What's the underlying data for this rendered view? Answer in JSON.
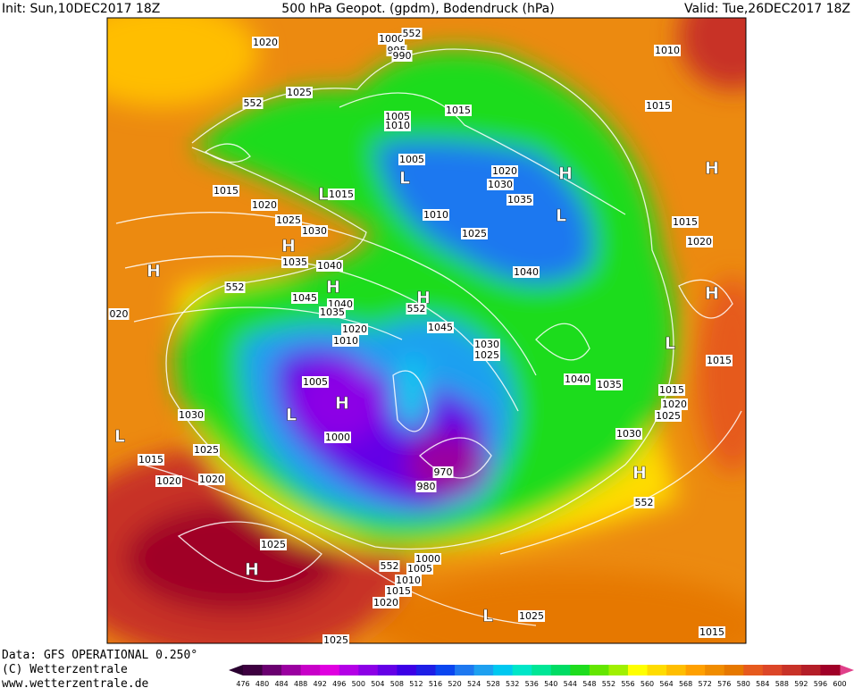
{
  "header": {
    "init": "Init: Sun,10DEC2017 18Z",
    "title": "500 hPa Geopot. (gpdm), Bodendruck (hPa)",
    "valid": "Valid: Tue,26DEC2017 18Z"
  },
  "footer": {
    "data": "Data: GFS OPERATIONAL 0.250°",
    "copyright": "(C) Wetterzentrale",
    "url": "www.wetterzentrale.de"
  },
  "colorbar": {
    "ticks": [
      476,
      480,
      484,
      488,
      492,
      496,
      500,
      504,
      508,
      512,
      516,
      520,
      524,
      528,
      532,
      536,
      540,
      544,
      548,
      552,
      556,
      560,
      564,
      568,
      572,
      576,
      580,
      584,
      588,
      592,
      596,
      600
    ],
    "colors": [
      "#3d0040",
      "#6a0070",
      "#9a00a0",
      "#c800c8",
      "#e000e0",
      "#b400e6",
      "#8c00e6",
      "#6400e6",
      "#3c00e6",
      "#1e1ee6",
      "#0a46f0",
      "#1e78f0",
      "#1ea0f0",
      "#00c8f0",
      "#00e6c8",
      "#00e696",
      "#00dc64",
      "#1edc1e",
      "#64e600",
      "#a0f000",
      "#ffff00",
      "#ffdc00",
      "#ffbe00",
      "#ffa000",
      "#f08c00",
      "#e67800",
      "#e65a1e",
      "#dc4628",
      "#c83228",
      "#b41e28",
      "#a00028"
    ]
  },
  "map": {
    "labels": [
      "1020",
      "1000",
      "995",
      "990",
      "552",
      "1010",
      "552",
      "1025",
      "1005",
      "1010",
      "1015",
      "1015",
      "1005",
      "L",
      "1020",
      "1030",
      "H",
      "H",
      "1015",
      "L",
      "1015",
      "1035",
      "1020",
      "1010",
      "L",
      "1025",
      "1030",
      "1025",
      "1015",
      "H",
      "1020",
      "1035",
      "1040",
      "H",
      "1040",
      "552",
      "H",
      "1045",
      "H",
      "1040",
      "H",
      "552",
      "1035",
      "020",
      "1045",
      "1020",
      "1010",
      "1030",
      "1025",
      "L",
      "1005",
      "1040",
      "1035",
      "1015",
      "1015",
      "H",
      "1020",
      "L",
      "1025",
      "1030",
      "L",
      "1000",
      "1030",
      "1025",
      "1015",
      "970",
      "H",
      "1020",
      "1020",
      "980",
      "552",
      "1025",
      "H",
      "1000",
      "552",
      "1005",
      "1010",
      "1015",
      "1020",
      "L",
      "1025",
      "1015",
      "1025"
    ]
  }
}
